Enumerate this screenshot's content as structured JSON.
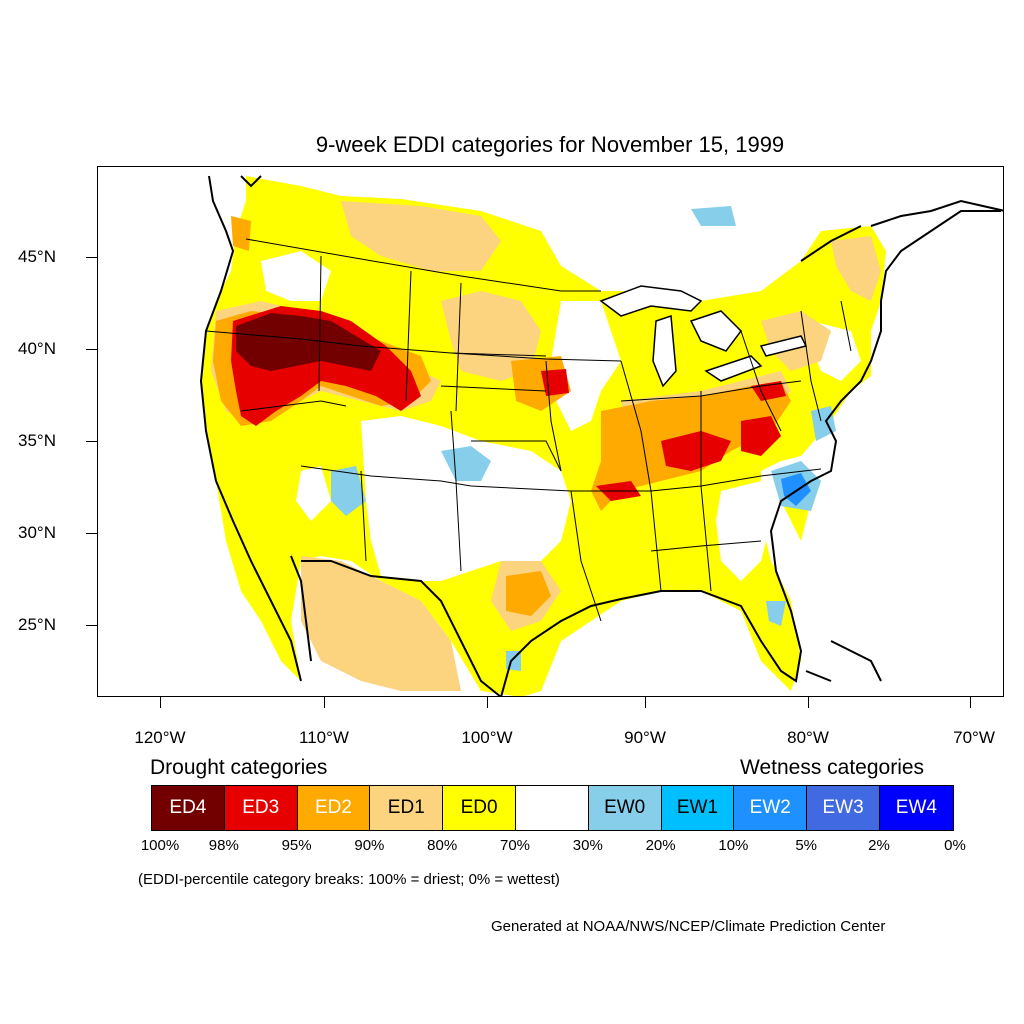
{
  "title": "9-week EDDI categories for November 15, 1999",
  "lat_labels": [
    "45°N",
    "40°N",
    "35°N",
    "30°N",
    "25°N"
  ],
  "lon_labels": [
    "120°W",
    "110°W",
    "100°W",
    "90°W",
    "80°W",
    "70°W"
  ],
  "drought_heading": "Drought categories",
  "wetness_heading": "Wetness categories",
  "legend": [
    {
      "label": "ED4",
      "color": "#730000",
      "text_color": "#ffffff"
    },
    {
      "label": "ED3",
      "color": "#e60000",
      "text_color": "#ffffff"
    },
    {
      "label": "ED2",
      "color": "#ffaa00",
      "text_color": "#ffffff"
    },
    {
      "label": "ED1",
      "color": "#fcd37f",
      "text_color": "#000000"
    },
    {
      "label": "ED0",
      "color": "#ffff00",
      "text_color": "#000000"
    },
    {
      "label": "",
      "color": "#ffffff",
      "text_color": "#000000"
    },
    {
      "label": "EW0",
      "color": "#87ceeb",
      "text_color": "#000000"
    },
    {
      "label": "EW1",
      "color": "#00bfff",
      "text_color": "#000000"
    },
    {
      "label": "EW2",
      "color": "#1e90ff",
      "text_color": "#ffffff"
    },
    {
      "label": "EW3",
      "color": "#4169e1",
      "text_color": "#ffffff"
    },
    {
      "label": "EW4",
      "color": "#0000ff",
      "text_color": "#ffffff"
    }
  ],
  "breaks": [
    "100%",
    "98%",
    "95%",
    "90%",
    "80%",
    "70%",
    "30%",
    "20%",
    "10%",
    "5%",
    "2%",
    "0%"
  ],
  "note": "(EDDI-percentile category breaks: 100% = driest; 0% = wettest)",
  "credit": "Generated at NOAA/NWS/NCEP/Climate Prediction Center"
}
